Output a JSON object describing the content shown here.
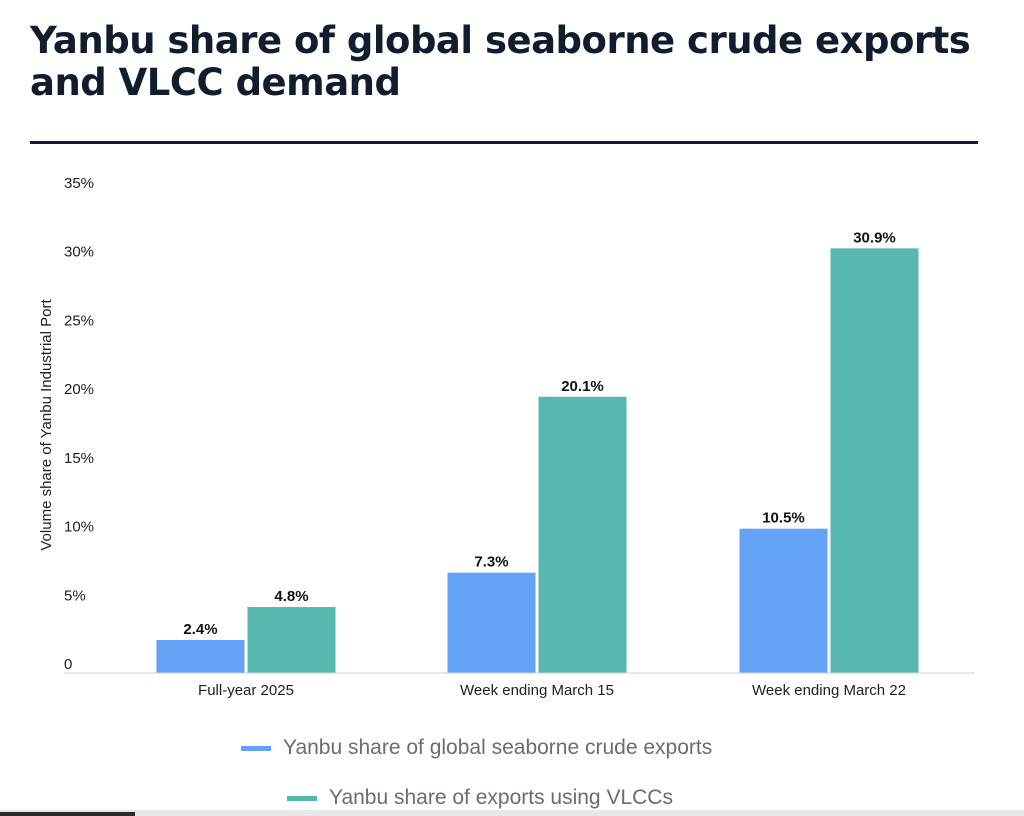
{
  "chart_data": {
    "type": "bar",
    "title": "Yanbu share of global seaborne crude exports and VLCC demand",
    "ylabel": "Volume share of Yanbu Industrial Port",
    "xlabel": "",
    "ylim": [
      0,
      35
    ],
    "yticks": [
      "0",
      "5%",
      "10%",
      "15%",
      "20%",
      "25%",
      "30%",
      "35%"
    ],
    "ytick_values": [
      0,
      5,
      10,
      15,
      20,
      25,
      30,
      35
    ],
    "categories": [
      "Full-year 2025",
      "Week ending March 15",
      "Week ending March 22"
    ],
    "series": [
      {
        "name": "Yanbu share of global seaborne crude exports",
        "values": [
          2.4,
          7.3,
          10.5
        ],
        "labels": [
          "2.4%",
          "7.3%",
          "10.5%"
        ],
        "color": "#64a2f6"
      },
      {
        "name": "Yanbu share of exports using VLCCs",
        "values": [
          4.8,
          20.1,
          30.9
        ],
        "labels": [
          "4.8%",
          "20.1%",
          "30.9%"
        ],
        "color": "#56b8b0"
      }
    ],
    "grid": false,
    "legend": "bottom"
  }
}
